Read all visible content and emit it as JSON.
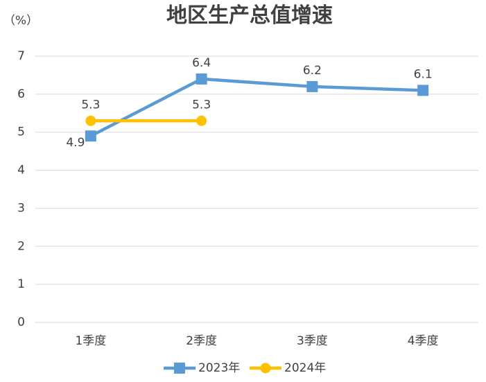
{
  "chart_data": {
    "type": "line",
    "title": "地区生产总值增速",
    "y_label": "（%）",
    "categories": [
      "1季度",
      "2季度",
      "3季度",
      "4季度"
    ],
    "series": [
      {
        "name": "2023年",
        "color": "#5b9bd5",
        "marker": "square",
        "values": [
          4.9,
          6.4,
          6.2,
          6.1
        ]
      },
      {
        "name": "2024年",
        "color": "#ffc000",
        "marker": "circle",
        "values": [
          5.3,
          5.3,
          null,
          null
        ]
      }
    ],
    "ylim": [
      0,
      7
    ],
    "yticks": [
      0,
      1,
      2,
      3,
      4,
      5,
      6,
      7
    ],
    "grid": true,
    "legend": "bottom"
  }
}
